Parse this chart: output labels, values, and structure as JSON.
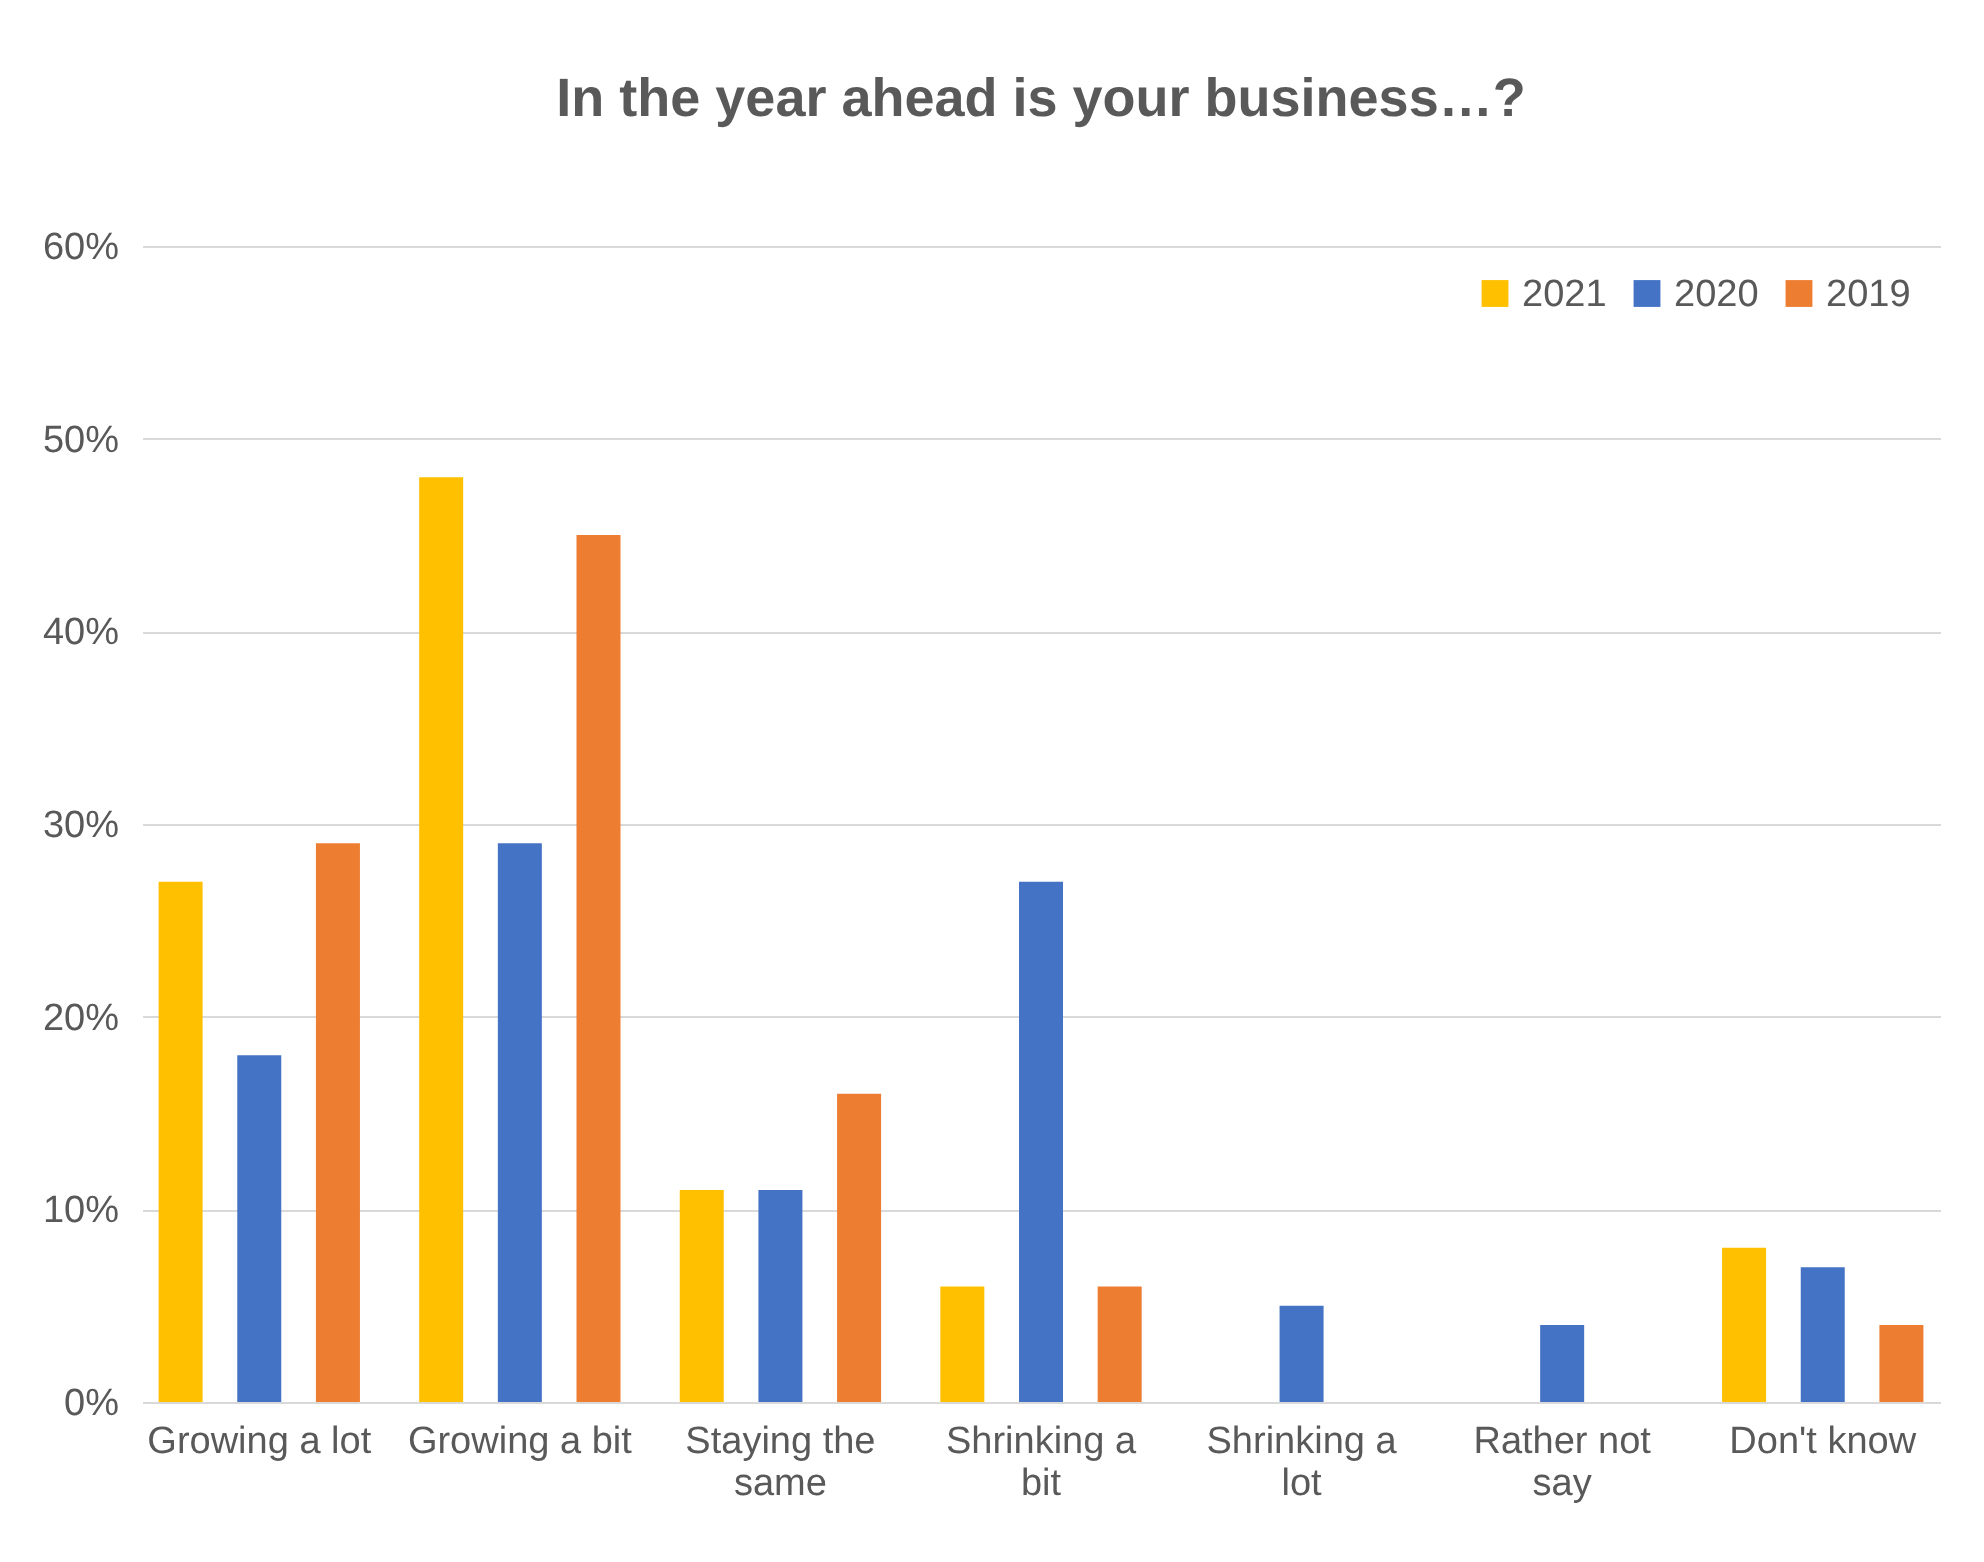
{
  "chart_data": {
    "type": "bar",
    "title": "In the year ahead is your business…?",
    "categories": [
      "Growing a lot",
      "Growing a bit",
      "Staying the same",
      "Shrinking a bit",
      "Shrinking a lot",
      "Rather not say",
      "Don't know"
    ],
    "series": [
      {
        "name": "2021",
        "color": "#ffc000",
        "values": [
          27,
          48,
          11,
          6,
          null,
          null,
          8
        ]
      },
      {
        "name": "2020",
        "color": "#4472c4",
        "values": [
          18,
          29,
          11,
          27,
          5,
          4,
          7
        ]
      },
      {
        "name": "2019",
        "color": "#ed7d31",
        "values": [
          29,
          45,
          16,
          6,
          null,
          null,
          4
        ]
      }
    ],
    "ylim": [
      0,
      60
    ],
    "yticks": [
      {
        "value": 0,
        "label": "0%"
      },
      {
        "value": 10,
        "label": "10%"
      },
      {
        "value": 20,
        "label": "20%"
      },
      {
        "value": 30,
        "label": "30%"
      },
      {
        "value": 40,
        "label": "40%"
      },
      {
        "value": 50,
        "label": "50%"
      },
      {
        "value": 60,
        "label": "60%"
      }
    ],
    "grid": "y",
    "legend": "top right"
  }
}
